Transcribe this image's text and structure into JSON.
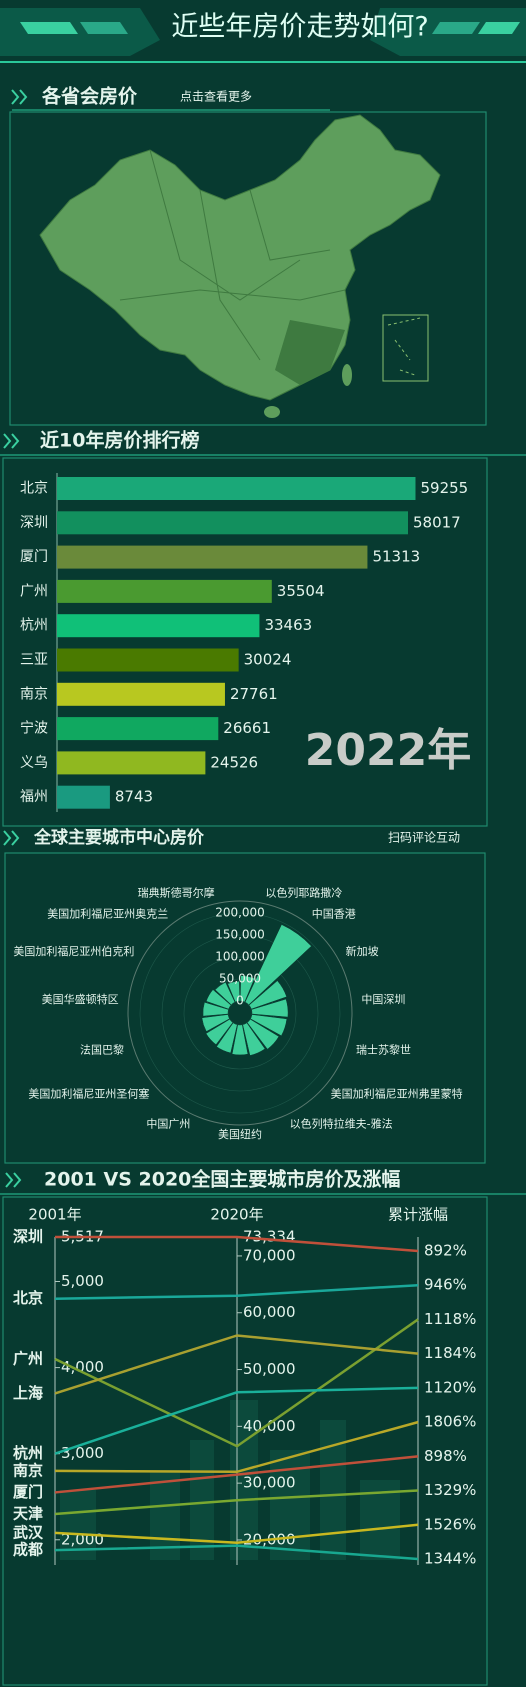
{
  "header": {
    "title": "近些年房价走势如何?"
  },
  "map_section": {
    "title": "各省会房价",
    "link": "点击查看更多"
  },
  "chart_data": [
    {
      "type": "bar",
      "title": "近10年房价排行榜",
      "annotation": "2022年",
      "categories": [
        "北京",
        "深圳",
        "厦门",
        "广州",
        "杭州",
        "三亚",
        "南京",
        "宁波",
        "义乌",
        "福州"
      ],
      "values": [
        59255,
        58017,
        51313,
        35504,
        33463,
        30024,
        27761,
        26661,
        24526,
        8743
      ],
      "colors": [
        "#1aa878",
        "#12905e",
        "#6a8a3a",
        "#4a9a30",
        "#10c078",
        "#4a7a00",
        "#b8c820",
        "#10a860",
        "#90b820",
        "#1a9a80"
      ],
      "xlim": [
        0,
        60000
      ]
    },
    {
      "type": "polar_bar",
      "title": "全球主要城市中心房价",
      "link": "扫码评论互动",
      "categories": [
        "以色列耶路撒冷",
        "中国香港",
        "新加坡",
        "中国深圳",
        "瑞士苏黎世",
        "美国加利福尼亚州弗里蒙特",
        "以色列特拉维夫-雅法",
        "美国纽约",
        "中国广州",
        "美国加利福尼亚州圣何塞",
        "法国巴黎",
        "美国华盛顿特区",
        "美国加利福尼亚州伯克利",
        "美国加利福尼亚州奥克兰",
        "瑞典斯德哥尔摩"
      ],
      "values": [
        58000,
        195000,
        85000,
        82000,
        80000,
        76000,
        72000,
        68000,
        66000,
        63000,
        60000,
        57000,
        54000,
        50000,
        45000
      ],
      "color": "#3fcf9a",
      "rlim": [
        0,
        200000
      ],
      "rticks": [
        0,
        {
          "value": 50000,
          "label": "50,000"
        },
        {
          "value": 100000,
          "label": "100,000"
        },
        {
          "value": 150000,
          "label": "150,000"
        },
        {
          "value": 200000,
          "label": "200,000"
        }
      ]
    },
    {
      "type": "parallel",
      "title": "2001 VS 2020全国主要城市房价及涨幅",
      "axes": [
        "2001年",
        "2020年",
        "累计涨幅"
      ],
      "ylim": [
        1800,
        5517
      ],
      "yticks": [
        {
          "value": 2000,
          "label": "2,000"
        },
        {
          "value": 3000,
          "label": "3,000"
        },
        {
          "value": 4000,
          "label": "4,000"
        },
        {
          "value": 5000,
          "label": "5,000"
        },
        {
          "value": 5517,
          "label": "5,517"
        }
      ],
      "y2lim": [
        17000,
        73334
      ],
      "y2ticks": [
        {
          "value": 20000,
          "label": "20,000"
        },
        {
          "value": 30000,
          "label": "30,000"
        },
        {
          "value": 40000,
          "label": "40,000"
        },
        {
          "value": 50000,
          "label": "50,000"
        },
        {
          "value": 60000,
          "label": "60,000"
        },
        {
          "value": 70000,
          "label": "70,000"
        },
        {
          "value": 73334,
          "label": "73,334"
        }
      ],
      "growth_labels": [
        "892%",
        "946%",
        "1118%",
        "1184%",
        "1120%",
        "1806%",
        "898%",
        "1329%",
        "1526%",
        "1344%"
      ],
      "series": [
        {
          "name": "深圳",
          "color": "#c0503a",
          "values": [
            5517,
            73334
          ]
        },
        {
          "name": "北京",
          "color": "#1aa89a",
          "values": [
            4800,
            63000
          ]
        },
        {
          "name": "广州",
          "color": "#7aa030",
          "values": [
            4100,
            36500
          ]
        },
        {
          "name": "上海",
          "color": "#a8a030",
          "values": [
            3700,
            56000
          ]
        },
        {
          "name": "杭州",
          "color": "#1ab09a",
          "values": [
            3000,
            46000
          ]
        },
        {
          "name": "南京",
          "color": "#b8a828",
          "values": [
            2800,
            32000
          ]
        },
        {
          "name": "厦门",
          "color": "#c0503a",
          "values": [
            2550,
            31500
          ]
        },
        {
          "name": "天津",
          "color": "#7aa830",
          "values": [
            2300,
            27000
          ]
        },
        {
          "name": "武汉",
          "color": "#c8b820",
          "values": [
            2080,
            19500
          ]
        },
        {
          "name": "成都",
          "color": "#18a890",
          "values": [
            1880,
            19000
          ]
        }
      ]
    }
  ]
}
